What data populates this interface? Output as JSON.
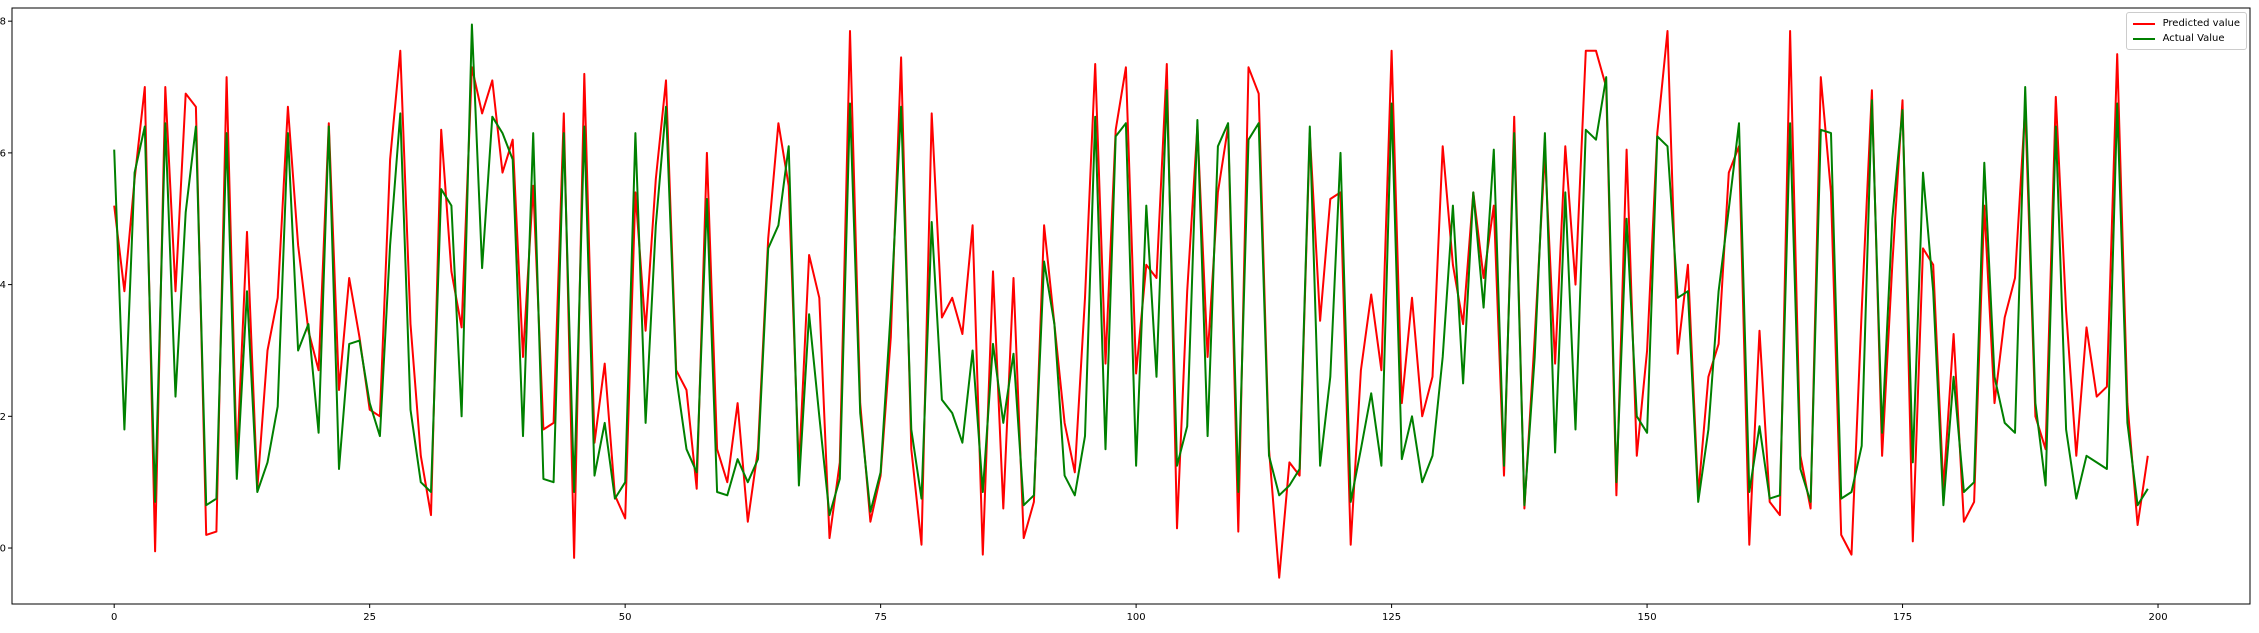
{
  "chart_data": {
    "type": "line",
    "title": "",
    "xlabel": "",
    "ylabel": "",
    "xlim": [
      -10,
      209
    ],
    "ylim": [
      -0.85,
      8.2
    ],
    "xticks": [
      0,
      25,
      50,
      75,
      100,
      125,
      150,
      175,
      200
    ],
    "xtick_labels": [
      "0",
      "25",
      "50",
      "75",
      "100",
      "125",
      "150",
      "175",
      "200"
    ],
    "yticks": [
      0,
      2,
      4,
      6,
      8
    ],
    "ytick_labels": [
      "0",
      "2",
      "4",
      "6",
      "8"
    ],
    "grid": false,
    "legend_position": "top-right",
    "x": [
      0,
      1,
      2,
      3,
      4,
      5,
      6,
      7,
      8,
      9,
      10,
      11,
      12,
      13,
      14,
      15,
      16,
      17,
      18,
      19,
      20,
      21,
      22,
      23,
      24,
      25,
      26,
      27,
      28,
      29,
      30,
      31,
      32,
      33,
      34,
      35,
      36,
      37,
      38,
      39,
      40,
      41,
      42,
      43,
      44,
      45,
      46,
      47,
      48,
      49,
      50,
      51,
      52,
      53,
      54,
      55,
      56,
      57,
      58,
      59,
      60,
      61,
      62,
      63,
      64,
      65,
      66,
      67,
      68,
      69,
      70,
      71,
      72,
      73,
      74,
      75,
      76,
      77,
      78,
      79,
      80,
      81,
      82,
      83,
      84,
      85,
      86,
      87,
      88,
      89,
      90,
      91,
      92,
      93,
      94,
      95,
      96,
      97,
      98,
      99,
      100,
      101,
      102,
      103,
      104,
      105,
      106,
      107,
      108,
      109,
      110,
      111,
      112,
      113,
      114,
      115,
      116,
      117,
      118,
      119,
      120,
      121,
      122,
      123,
      124,
      125,
      126,
      127,
      128,
      129,
      130,
      131,
      132,
      133,
      134,
      135,
      136,
      137,
      138,
      139,
      140,
      141,
      142,
      143,
      144,
      145,
      146,
      147,
      148,
      149,
      150,
      151,
      152,
      153,
      154,
      155,
      156,
      157,
      158,
      159,
      160,
      161,
      162,
      163,
      164,
      165,
      166,
      167,
      168,
      169,
      170,
      171,
      172,
      173,
      174,
      175,
      176,
      177,
      178,
      179,
      180,
      181,
      182,
      183,
      184,
      185,
      186,
      187,
      188,
      189,
      190,
      191,
      192,
      193,
      194,
      195,
      196,
      197,
      198,
      199
    ],
    "series": [
      {
        "name": "Predicted value",
        "color": "#ff0000",
        "values": [
          5.2,
          3.9,
          5.6,
          7.0,
          -0.05,
          7.0,
          3.9,
          6.9,
          6.7,
          0.2,
          0.25,
          7.15,
          1.3,
          4.8,
          0.9,
          3.0,
          3.8,
          6.7,
          4.6,
          3.3,
          2.7,
          6.45,
          2.4,
          4.1,
          3.2,
          2.1,
          2.0,
          5.9,
          7.55,
          3.4,
          1.4,
          0.5,
          6.35,
          4.2,
          3.35,
          7.3,
          6.6,
          7.1,
          5.7,
          6.2,
          2.9,
          5.5,
          1.8,
          1.9,
          6.6,
          -0.15,
          7.2,
          1.6,
          2.8,
          0.8,
          0.45,
          5.4,
          3.3,
          5.6,
          7.1,
          2.7,
          2.4,
          0.9,
          6.0,
          1.5,
          1.0,
          2.2,
          0.4,
          1.5,
          4.7,
          6.45,
          5.5,
          1.2,
          4.45,
          3.8,
          0.15,
          1.3,
          7.85,
          2.2,
          0.4,
          1.1,
          3.2,
          7.45,
          1.5,
          0.05,
          6.6,
          3.5,
          3.8,
          3.25,
          4.9,
          -0.1,
          4.2,
          0.6,
          4.1,
          0.15,
          0.7,
          4.9,
          3.4,
          1.9,
          1.15,
          3.8,
          7.35,
          2.8,
          6.35,
          7.3,
          2.65,
          4.3,
          4.1,
          7.35,
          0.3,
          3.9,
          6.4,
          2.9,
          5.4,
          6.4,
          0.25,
          7.3,
          6.9,
          1.5,
          -0.45,
          1.3,
          1.1,
          6.3,
          3.45,
          5.3,
          5.4,
          0.05,
          2.7,
          3.85,
          2.7,
          7.55,
          2.2,
          3.8,
          2.0,
          2.6,
          6.1,
          4.3,
          3.4,
          5.4,
          4.1,
          5.2,
          1.1,
          6.55,
          0.6,
          3.2,
          6.0,
          2.8,
          6.1,
          4.0,
          7.55,
          7.55,
          7.0,
          0.8,
          6.05,
          1.4,
          3.0,
          6.3,
          7.85,
          2.95,
          4.3,
          0.8,
          2.6,
          3.1,
          5.7,
          6.1,
          0.05,
          3.3,
          0.7,
          0.5,
          7.85,
          1.4,
          0.6,
          7.15,
          5.4,
          0.2,
          -0.1,
          3.6,
          6.95,
          1.4,
          4.3,
          6.8,
          0.1,
          4.55,
          4.3,
          0.9,
          3.25,
          0.4,
          0.7,
          5.2,
          2.2,
          3.5,
          4.1,
          6.7,
          2.0,
          1.5,
          6.85,
          3.6,
          1.4,
          3.35,
          2.3,
          2.45,
          7.5,
          2.2,
          0.35,
          1.4
        ]
      },
      {
        "name": "Actual Value",
        "color": "#008000",
        "values": [
          6.05,
          1.8,
          5.7,
          6.4,
          0.7,
          6.45,
          2.3,
          5.1,
          6.4,
          0.65,
          0.75,
          6.3,
          1.05,
          3.9,
          0.85,
          1.3,
          2.15,
          6.3,
          3.0,
          3.4,
          1.75,
          6.4,
          1.2,
          3.1,
          3.15,
          2.2,
          1.7,
          4.6,
          6.6,
          2.1,
          1.0,
          0.85,
          5.45,
          5.2,
          2.0,
          7.95,
          4.25,
          6.55,
          6.3,
          5.9,
          1.7,
          6.3,
          1.05,
          1.0,
          6.3,
          0.85,
          6.4,
          1.1,
          1.9,
          0.75,
          1.0,
          6.3,
          1.9,
          4.9,
          6.7,
          2.6,
          1.5,
          1.15,
          5.3,
          0.85,
          0.8,
          1.35,
          1.0,
          1.35,
          4.55,
          4.9,
          6.1,
          0.95,
          3.55,
          2.0,
          0.5,
          1.05,
          6.75,
          2.05,
          0.55,
          1.15,
          3.6,
          6.7,
          1.8,
          0.75,
          4.95,
          2.25,
          2.05,
          1.6,
          3.0,
          0.85,
          3.1,
          1.9,
          2.95,
          0.65,
          0.8,
          4.35,
          3.4,
          1.1,
          0.8,
          1.7,
          6.55,
          1.5,
          6.25,
          6.45,
          1.25,
          5.2,
          2.6,
          6.95,
          1.25,
          1.85,
          6.5,
          1.7,
          6.1,
          6.45,
          0.85,
          6.2,
          6.45,
          1.4,
          0.8,
          0.95,
          1.2,
          6.4,
          1.25,
          2.6,
          6.0,
          0.7,
          1.5,
          2.35,
          1.25,
          6.75,
          1.35,
          2.0,
          1.0,
          1.4,
          2.9,
          5.2,
          2.5,
          5.4,
          3.65,
          6.05,
          1.25,
          6.3,
          0.65,
          2.9,
          6.3,
          1.45,
          5.4,
          1.8,
          6.35,
          6.2,
          7.15,
          1.0,
          5.0,
          2.0,
          1.75,
          6.25,
          6.1,
          3.8,
          3.9,
          0.7,
          1.8,
          3.9,
          5.15,
          6.45,
          0.85,
          1.85,
          0.75,
          0.8,
          6.45,
          1.2,
          0.7,
          6.35,
          6.3,
          0.75,
          0.85,
          1.55,
          6.8,
          1.75,
          5.0,
          6.65,
          1.3,
          5.7,
          3.9,
          0.65,
          2.6,
          0.85,
          1.0,
          5.85,
          2.6,
          1.9,
          1.75,
          7.0,
          2.2,
          0.95,
          6.4,
          1.8,
          0.75,
          1.4,
          1.3,
          1.2,
          6.75,
          1.9,
          0.65,
          0.9
        ]
      }
    ]
  }
}
